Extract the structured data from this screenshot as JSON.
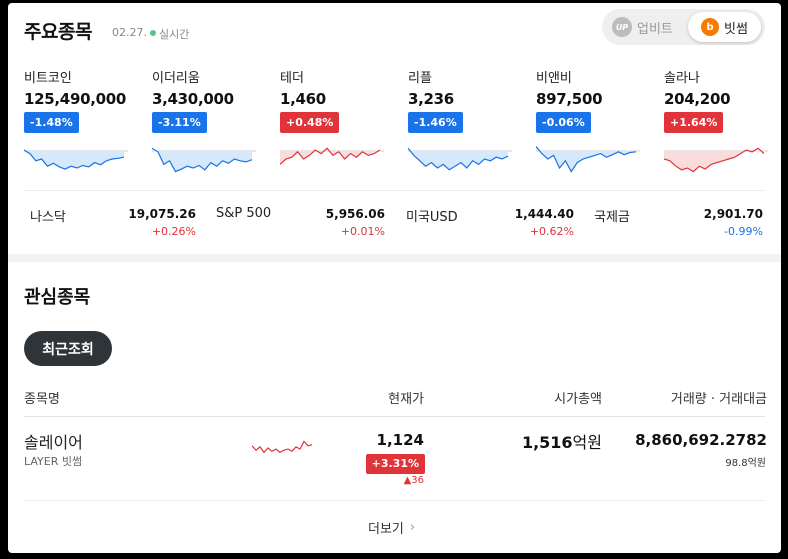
{
  "header": {
    "title": "주요종목",
    "date": "02.27.",
    "realtime": "실시간",
    "exchange_upbit": "업비트",
    "exchange_upbit_logo": "UP",
    "exchange_bithumb": "빗썸",
    "exchange_bithumb_logo": "b"
  },
  "colors": {
    "up": "#e0333a",
    "down": "#1a73e8",
    "spark_down_fill": "#d6e8fb",
    "spark_up_fill": "#fbdcdc"
  },
  "coins": [
    {
      "name": "비트코인",
      "price": "125,490,000",
      "change": "-1.48%",
      "dir": "down"
    },
    {
      "name": "이더리움",
      "price": "3,430,000",
      "change": "-3.11%",
      "dir": "down"
    },
    {
      "name": "테더",
      "price": "1,460",
      "change": "+0.48%",
      "dir": "up"
    },
    {
      "name": "리플",
      "price": "3,236",
      "change": "-1.46%",
      "dir": "down"
    },
    {
      "name": "비앤비",
      "price": "897,500",
      "change": "-0.06%",
      "dir": "down"
    },
    {
      "name": "솔라나",
      "price": "204,200",
      "change": "+1.64%",
      "dir": "up"
    }
  ],
  "indices": [
    {
      "name": "나스닥",
      "value": "19,075.26",
      "change": "+0.26%",
      "dir": "up"
    },
    {
      "name": "S&P 500",
      "value": "5,956.06",
      "change": "+0.01%",
      "dir": "up"
    },
    {
      "name": "미국USD",
      "value": "1,444.40",
      "change": "+0.62%",
      "dir": "up"
    },
    {
      "name": "국제금",
      "value": "2,901.70",
      "change": "-0.99%",
      "dir": "down"
    }
  ],
  "watchlist": {
    "title": "관심종목",
    "tab_recent": "최근조회",
    "columns": {
      "name": "종목명",
      "price": "현재가",
      "market_cap": "시가총액",
      "volume": "거래량 · 거래대금"
    },
    "rows": [
      {
        "name": "솔레이어",
        "ticker": "LAYER 빗썸",
        "price": "1,124",
        "change": "+3.31%",
        "delta": "36",
        "market_cap": "1,516",
        "market_cap_unit": "억원",
        "volume": "8,860,692.2782",
        "trade_value": "98.8억원"
      }
    ],
    "more_label": "더보기"
  }
}
